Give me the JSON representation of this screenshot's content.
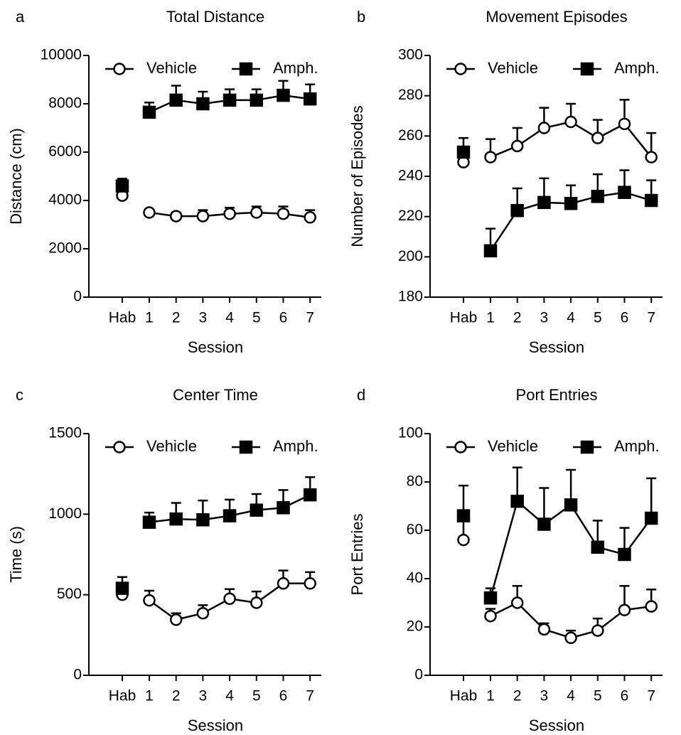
{
  "chart_data": [
    {
      "type": "line",
      "panel_label": "a",
      "title": "Total Distance",
      "xlabel": "Session",
      "ylabel": "Distance (cm)",
      "categories": [
        "Hab",
        "1",
        "2",
        "3",
        "4",
        "5",
        "6",
        "7"
      ],
      "ylim": [
        0,
        10000
      ],
      "yticks": [
        0,
        2000,
        4000,
        6000,
        8000,
        10000
      ],
      "legend": "upper left",
      "series": [
        {
          "name": "Vehicle",
          "color": "#000000",
          "marker": "circle",
          "filled": false,
          "values": [
            4200,
            3500,
            3350,
            3350,
            3450,
            3500,
            3450,
            3300
          ],
          "errors": [
            300,
            100,
            150,
            250,
            250,
            250,
            300,
            300
          ]
        },
        {
          "name": "Amph.",
          "color": "#000000",
          "marker": "square",
          "filled": true,
          "values": [
            4600,
            7650,
            8150,
            8000,
            8150,
            8150,
            8350,
            8200
          ],
          "errors": [
            300,
            400,
            600,
            500,
            450,
            450,
            600,
            600
          ]
        }
      ]
    },
    {
      "type": "line",
      "panel_label": "b",
      "title": "Movement Episodes",
      "xlabel": "Session",
      "ylabel": "Number of Episodes",
      "categories": [
        "Hab",
        "1",
        "2",
        "3",
        "4",
        "5",
        "6",
        "7"
      ],
      "ylim": [
        180,
        300
      ],
      "yticks": [
        180,
        200,
        220,
        240,
        260,
        280,
        300
      ],
      "legend": "upper left",
      "series": [
        {
          "name": "Vehicle",
          "color": "#000000",
          "marker": "circle",
          "filled": false,
          "values": [
            247,
            249.5,
            255,
            264,
            267,
            259,
            266,
            249.5
          ],
          "errors": [
            6,
            9,
            9,
            10,
            9,
            9,
            12,
            12
          ]
        },
        {
          "name": "Amph.",
          "color": "#000000",
          "marker": "square",
          "filled": true,
          "values": [
            252,
            203,
            223,
            227,
            226.5,
            230,
            232,
            228
          ],
          "errors": [
            7,
            11,
            11,
            12,
            9,
            11,
            11,
            10
          ]
        }
      ]
    },
    {
      "type": "line",
      "panel_label": "c",
      "title": "Center Time",
      "xlabel": "Session",
      "ylabel": "Time (s)",
      "categories": [
        "Hab",
        "1",
        "2",
        "3",
        "4",
        "5",
        "6",
        "7"
      ],
      "ylim": [
        0,
        1500
      ],
      "yticks": [
        0,
        500,
        1000,
        1500
      ],
      "legend": "upper left",
      "series": [
        {
          "name": "Vehicle",
          "color": "#000000",
          "marker": "circle",
          "filled": false,
          "values": [
            500,
            465,
            345,
            385,
            475,
            450,
            570,
            570
          ],
          "errors": [
            70,
            60,
            40,
            50,
            60,
            70,
            80,
            70
          ]
        },
        {
          "name": "Amph.",
          "color": "#000000",
          "marker": "square",
          "filled": true,
          "values": [
            540,
            950,
            970,
            965,
            990,
            1025,
            1040,
            1120
          ],
          "errors": [
            70,
            60,
            100,
            120,
            100,
            100,
            110,
            110
          ]
        }
      ]
    },
    {
      "type": "line",
      "panel_label": "d",
      "title": "Port Entries",
      "xlabel": "Session",
      "ylabel": "Port Entries",
      "categories": [
        "Hab",
        "1",
        "2",
        "3",
        "4",
        "5",
        "6",
        "7"
      ],
      "ylim": [
        0,
        100
      ],
      "yticks": [
        0,
        20,
        40,
        60,
        80,
        100
      ],
      "legend": "upper left",
      "series": [
        {
          "name": "Vehicle",
          "color": "#000000",
          "marker": "circle",
          "filled": false,
          "values": [
            56,
            24.5,
            30,
            19,
            15.5,
            18.5,
            27,
            28.5
          ],
          "errors": [
            9,
            3,
            7,
            2.5,
            3,
            5,
            10,
            7
          ]
        },
        {
          "name": "Amph.",
          "color": "#000000",
          "marker": "square",
          "filled": true,
          "values": [
            66,
            32,
            72,
            62.5,
            70.5,
            53,
            50,
            65
          ],
          "errors": [
            12.5,
            4,
            14,
            15,
            14.5,
            11,
            11,
            16.5
          ]
        }
      ]
    }
  ]
}
